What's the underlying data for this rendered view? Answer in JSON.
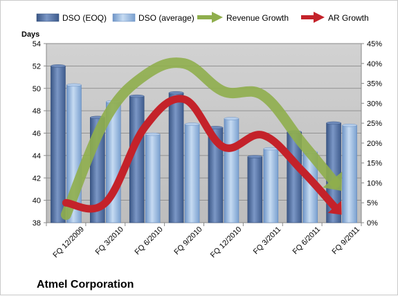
{
  "chart_data": {
    "type": "bar",
    "title": "Atmel Corporation",
    "ylabel": "Days",
    "categories": [
      "FQ 12/2009",
      "FQ 3/2010",
      "FQ 6/2010",
      "FQ 9/2010",
      "FQ 12/2010",
      "FQ 3/2011",
      "FQ 6/2011",
      "FQ 9/2011"
    ],
    "ylim": [
      38,
      54
    ],
    "y_ticks": [
      "54",
      "52",
      "50",
      "48",
      "46",
      "44",
      "42",
      "40",
      "38"
    ],
    "y2lim": [
      0,
      45
    ],
    "y2_ticks": [
      "45%",
      "40%",
      "35%",
      "30%",
      "25%",
      "20%",
      "15%",
      "10%",
      "5%",
      "0%"
    ],
    "grid": true,
    "legend_position": "top",
    "series": [
      {
        "name": "DSO (EOQ)",
        "kind": "bar",
        "axis": "left",
        "color": "#4f6fa6",
        "values": [
          52.0,
          47.4,
          49.3,
          49.6,
          46.5,
          43.9,
          46.1,
          46.9
        ]
      },
      {
        "name": "DSO (average)",
        "kind": "bar",
        "axis": "left",
        "color": "#8fb3dd",
        "values": [
          50.3,
          48.8,
          45.9,
          46.8,
          47.3,
          44.6,
          44.3,
          46.7
        ]
      },
      {
        "name": "Revenue Growth",
        "kind": "arrow-line",
        "axis": "right",
        "color": "#8fae4d",
        "values": [
          2,
          26,
          37,
          40,
          33,
          32,
          20,
          8
        ]
      },
      {
        "name": "AR Growth",
        "kind": "arrow-line",
        "axis": "right",
        "color": "#c4222a",
        "values": [
          5,
          5,
          24,
          31,
          19,
          22,
          13,
          2
        ]
      }
    ]
  }
}
